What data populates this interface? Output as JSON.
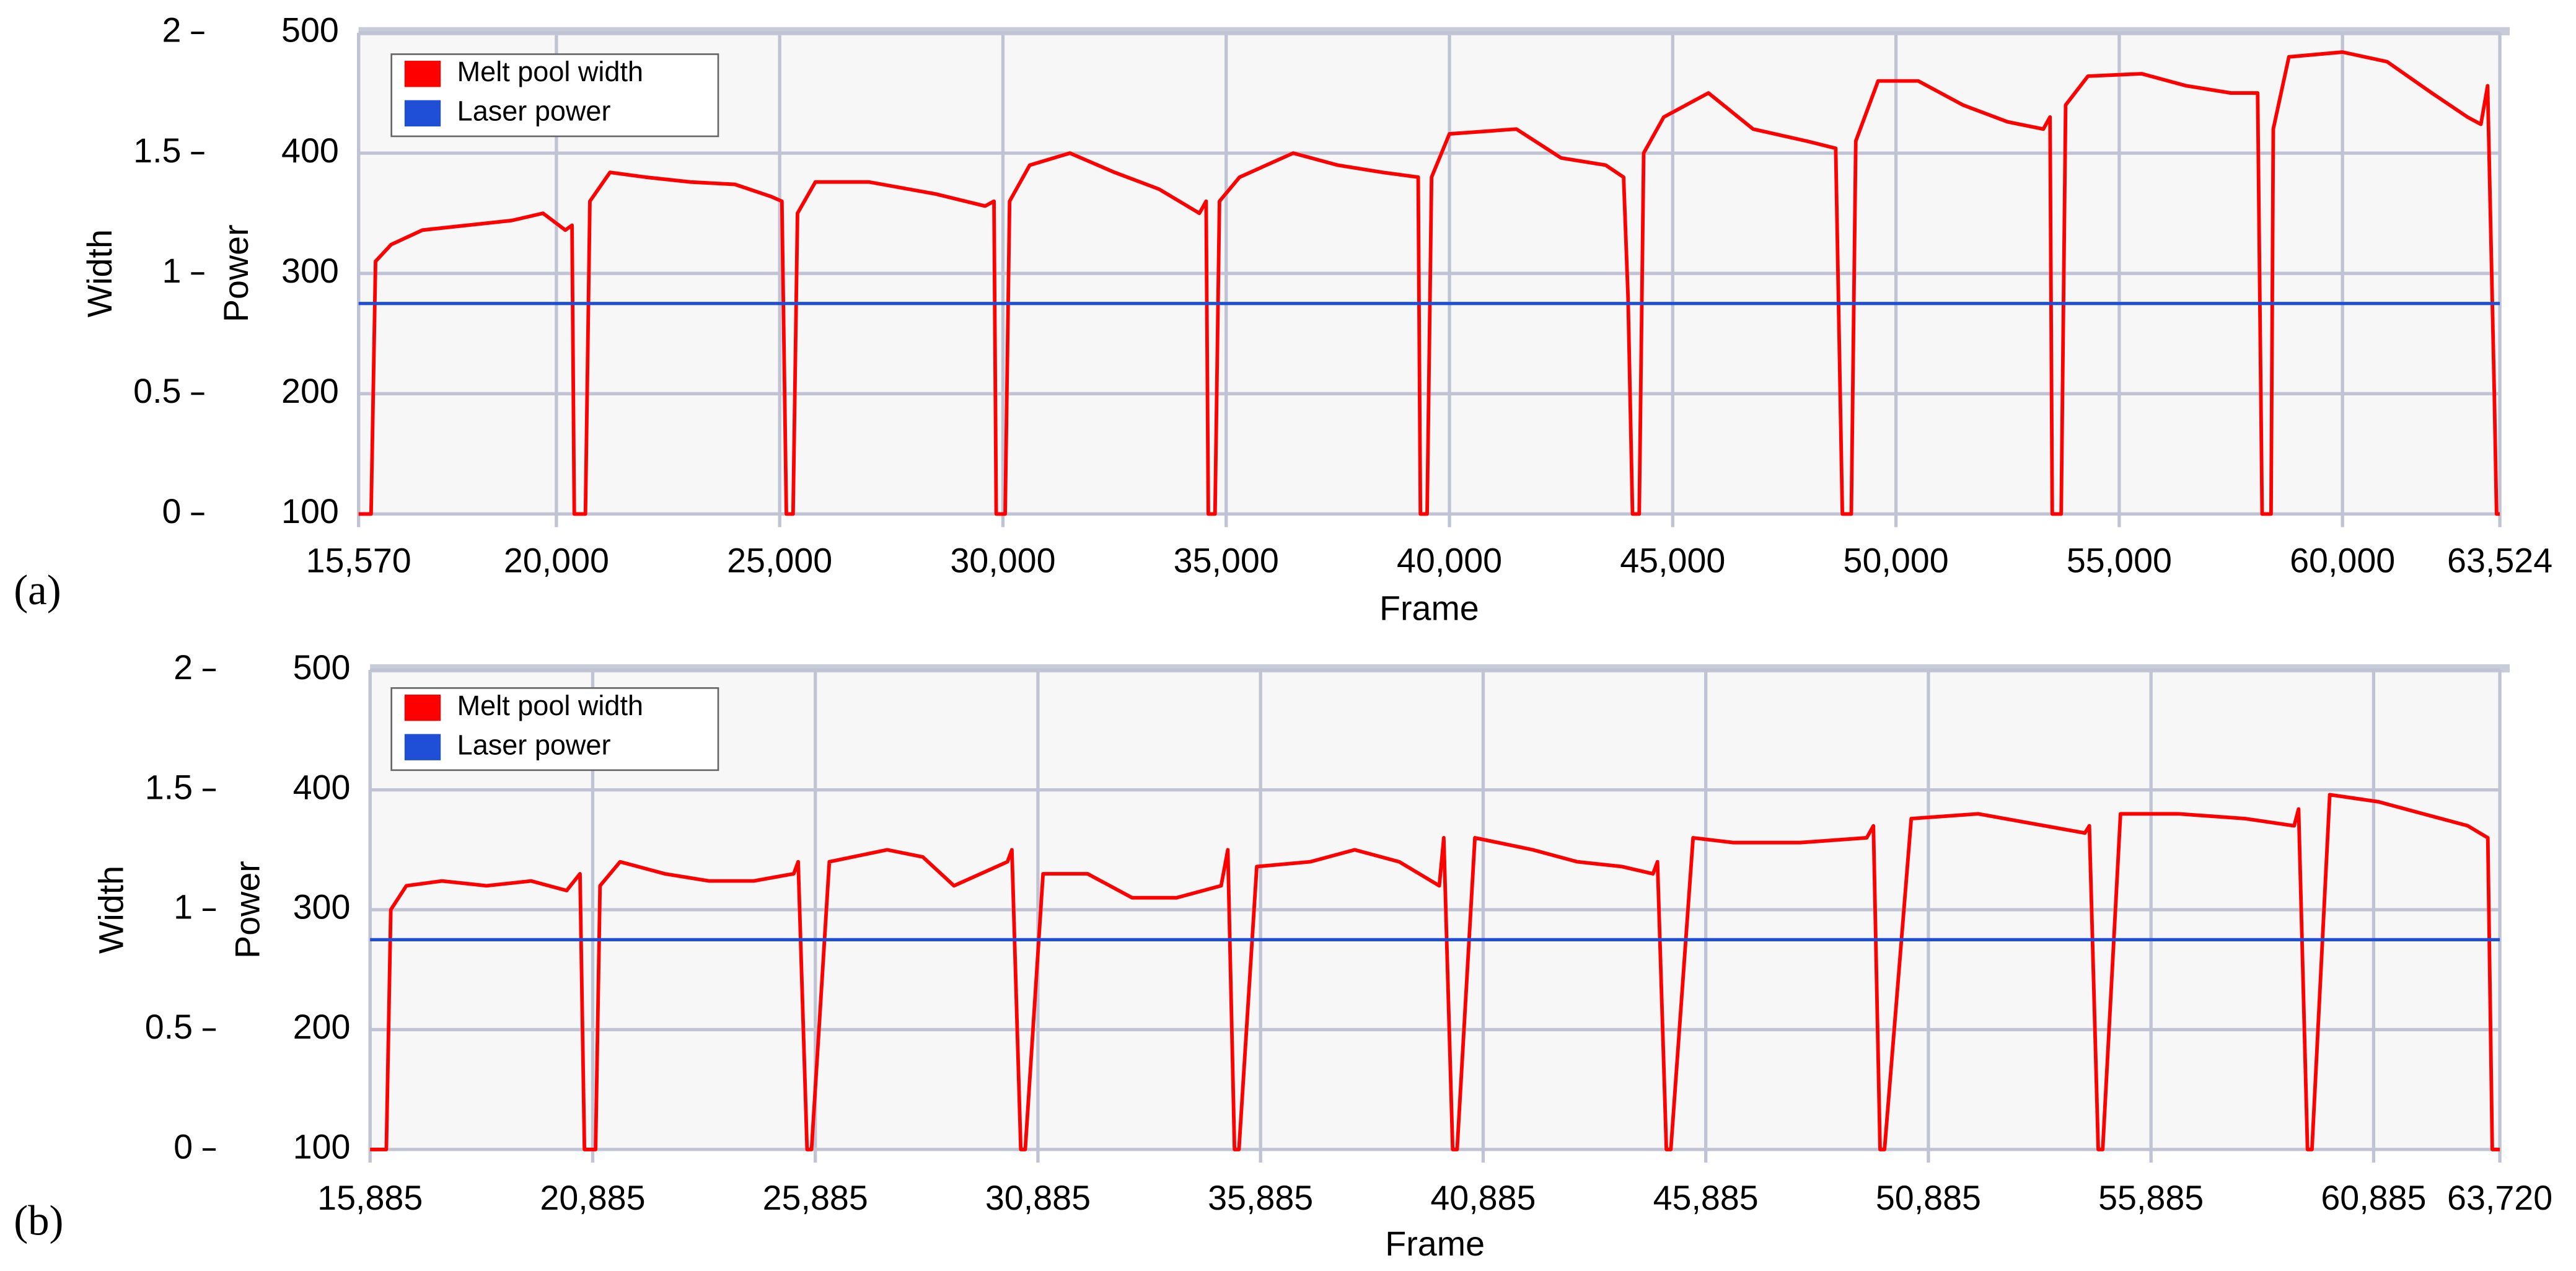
{
  "chart_data": [
    {
      "type": "line",
      "panel_label": "(a)",
      "xlabel": "Frame",
      "ylabel": "Width",
      "y2label": "Power",
      "xlim": [
        15570,
        63524
      ],
      "xticks": [
        {
          "value": 15570,
          "label": "15,570"
        },
        {
          "value": 20000,
          "label": "20,000"
        },
        {
          "value": 25000,
          "label": "25,000"
        },
        {
          "value": 30000,
          "label": "30,000"
        },
        {
          "value": 35000,
          "label": "35,000"
        },
        {
          "value": 40000,
          "label": "40,000"
        },
        {
          "value": 45000,
          "label": "45,000"
        },
        {
          "value": 50000,
          "label": "50,000"
        },
        {
          "value": 55000,
          "label": "55,000"
        },
        {
          "value": 60000,
          "label": "60,000"
        },
        {
          "value": 63524,
          "label": "63,524"
        }
      ],
      "ylim": [
        0,
        2
      ],
      "yticks": [
        0,
        0.5,
        1,
        1.5,
        2
      ],
      "y2lim": [
        100,
        500
      ],
      "y2ticks": [
        100,
        200,
        300,
        400,
        500
      ],
      "grid": true,
      "legend": "upper left",
      "series": [
        {
          "name": "Melt pool width",
          "color": "#ff0000",
          "x": [
            15570,
            15850,
            15950,
            16300,
            17000,
            18000,
            19000,
            19700,
            20200,
            20350,
            20400,
            20650,
            20750,
            21200,
            22000,
            23000,
            24000,
            24800,
            25050,
            25150,
            25300,
            25400,
            25800,
            27000,
            28500,
            29600,
            29800,
            29850,
            30050,
            30150,
            30600,
            31500,
            32500,
            33500,
            34400,
            34550,
            34600,
            34750,
            34850,
            35300,
            36500,
            37500,
            38500,
            39300,
            39350,
            39500,
            39600,
            40000,
            41500,
            42500,
            43500,
            43900,
            44000,
            44100,
            44250,
            44350,
            44800,
            45800,
            46800,
            48000,
            48650,
            48800,
            49000,
            49100,
            49600,
            50500,
            51500,
            52500,
            53300,
            53450,
            53500,
            53700,
            53800,
            54300,
            55500,
            56500,
            57500,
            58100,
            58200,
            58400,
            58450,
            58800,
            60000,
            61000,
            62000,
            62800,
            63100,
            63250,
            63400,
            63450,
            63524
          ],
          "values": [
            0,
            0,
            1.05,
            1.12,
            1.18,
            1.2,
            1.22,
            1.25,
            1.18,
            1.2,
            0,
            0,
            1.3,
            1.42,
            1.4,
            1.38,
            1.37,
            1.32,
            1.3,
            0,
            0,
            1.25,
            1.38,
            1.38,
            1.33,
            1.28,
            1.3,
            0,
            0,
            1.3,
            1.45,
            1.5,
            1.42,
            1.35,
            1.25,
            1.3,
            0,
            0,
            1.3,
            1.4,
            1.5,
            1.45,
            1.42,
            1.4,
            0,
            0,
            1.4,
            1.58,
            1.6,
            1.48,
            1.45,
            1.4,
            0.9,
            0,
            0,
            1.5,
            1.65,
            1.75,
            1.6,
            1.55,
            1.52,
            0,
            0,
            1.55,
            1.8,
            1.8,
            1.7,
            1.63,
            1.6,
            1.65,
            0,
            0,
            1.7,
            1.82,
            1.83,
            1.78,
            1.75,
            1.75,
            0,
            0,
            1.6,
            1.9,
            1.92,
            1.88,
            1.75,
            1.65,
            1.62,
            1.78,
            0.5,
            0,
            0
          ]
        },
        {
          "name": "Laser power",
          "color": "#1f4fd6",
          "axis": "y2",
          "x": [
            15570,
            63524
          ],
          "values": [
            275,
            275
          ]
        }
      ]
    },
    {
      "type": "line",
      "panel_label": "(b)",
      "xlabel": "Frame",
      "ylabel": "Width",
      "y2label": "Power",
      "xlim": [
        15885,
        63720
      ],
      "xticks": [
        {
          "value": 15885,
          "label": "15,885"
        },
        {
          "value": 20885,
          "label": "20,885"
        },
        {
          "value": 25885,
          "label": "25,885"
        },
        {
          "value": 30885,
          "label": "30,885"
        },
        {
          "value": 35885,
          "label": "35,885"
        },
        {
          "value": 40885,
          "label": "40,885"
        },
        {
          "value": 45885,
          "label": "45,885"
        },
        {
          "value": 50885,
          "label": "50,885"
        },
        {
          "value": 55885,
          "label": "55,885"
        },
        {
          "value": 60885,
          "label": "60,885"
        },
        {
          "value": 63720,
          "label": "63,720"
        }
      ],
      "ylim": [
        0,
        2
      ],
      "yticks": [
        0,
        0.5,
        1,
        1.5,
        2
      ],
      "y2lim": [
        100,
        500
      ],
      "y2ticks": [
        100,
        200,
        300,
        400,
        500
      ],
      "grid": true,
      "legend": "upper left",
      "series": [
        {
          "name": "Melt pool width",
          "color": "#ff0000",
          "x": [
            15885,
            16250,
            16350,
            16700,
            17500,
            18500,
            19500,
            20300,
            20600,
            20700,
            20950,
            21050,
            21500,
            22500,
            23500,
            24500,
            25400,
            25500,
            25700,
            25800,
            26200,
            27500,
            28300,
            29000,
            30200,
            30300,
            30500,
            30600,
            31000,
            32000,
            33000,
            34000,
            35000,
            35150,
            35300,
            35400,
            35800,
            37000,
            38000,
            39000,
            39900,
            40000,
            40200,
            40300,
            40700,
            42000,
            43000,
            44000,
            44700,
            44800,
            45000,
            45100,
            45600,
            46500,
            48000,
            49500,
            49650,
            49800,
            49900,
            50500,
            52000,
            53500,
            54400,
            54500,
            54700,
            54800,
            55200,
            56500,
            58000,
            59100,
            59200,
            59400,
            59500,
            59900,
            61000,
            62000,
            63000,
            63450,
            63550,
            63720
          ],
          "values": [
            0,
            0,
            1.0,
            1.1,
            1.12,
            1.1,
            1.12,
            1.08,
            1.15,
            0,
            0,
            1.1,
            1.2,
            1.15,
            1.12,
            1.12,
            1.15,
            1.2,
            0,
            0,
            1.2,
            1.25,
            1.22,
            1.1,
            1.2,
            1.25,
            0,
            0,
            1.15,
            1.15,
            1.05,
            1.05,
            1.1,
            1.25,
            0,
            0,
            1.18,
            1.2,
            1.25,
            1.2,
            1.1,
            1.3,
            0,
            0,
            1.3,
            1.25,
            1.2,
            1.18,
            1.15,
            1.2,
            0,
            0,
            1.3,
            1.28,
            1.28,
            1.3,
            1.35,
            0,
            0,
            1.38,
            1.4,
            1.35,
            1.32,
            1.35,
            0,
            0,
            1.4,
            1.4,
            1.38,
            1.35,
            1.42,
            0,
            0,
            1.48,
            1.45,
            1.4,
            1.35,
            1.3,
            0,
            0
          ]
        },
        {
          "name": "Laser power",
          "color": "#1f4fd6",
          "axis": "y2",
          "x": [
            15885,
            63720
          ],
          "values": [
            275,
            275
          ]
        }
      ]
    }
  ]
}
